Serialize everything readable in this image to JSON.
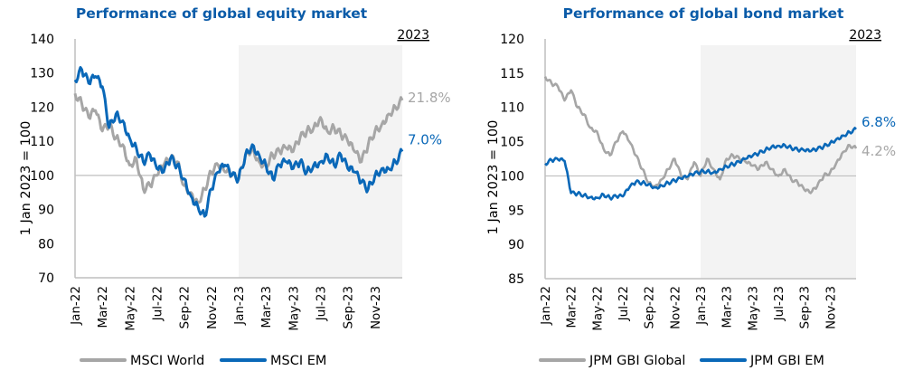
{
  "chart_data": [
    {
      "type": "line",
      "title": "Performance of global equity market",
      "xlabel": "",
      "ylabel": "1 Jan 2023 = 100",
      "ylim": [
        70,
        140
      ],
      "yticks": [
        "140",
        "130",
        "120",
        "110",
        "100",
        "90",
        "80",
        "70"
      ],
      "xticks": [
        "Jan-22",
        "Mar-22",
        "May-22",
        "Jul-22",
        "Sep-22",
        "Nov-22",
        "Jan-23",
        "Mar-23",
        "May-23",
        "Jul-23",
        "Sep-23",
        "Nov-23"
      ],
      "highlight_label": "2023",
      "highlight_range": [
        "Jan-23",
        "Dec-23"
      ],
      "reference_line": 100,
      "legend_position": "bottom",
      "x": [
        0,
        0.5,
        1,
        1.5,
        2,
        2.5,
        3,
        3.5,
        4,
        4.5,
        5,
        5.5,
        6,
        6.5,
        7,
        7.5,
        8,
        8.5,
        9,
        9.5,
        10,
        10.5,
        11,
        11.5,
        12,
        12.5,
        13,
        13.5,
        14,
        14.5,
        15,
        15.5,
        16,
        16.5,
        17,
        17.5,
        18,
        18.5,
        19,
        19.5,
        20,
        20.5,
        21,
        21.5,
        22,
        22.5,
        23,
        23.5,
        24
      ],
      "series": [
        {
          "name": "MSCI World",
          "color": "#a6a6a6",
          "end_label": "21.8%",
          "values": [
            124,
            121,
            117,
            119,
            113,
            115,
            111,
            109,
            103,
            105,
            96,
            97,
            100,
            103,
            105,
            104,
            97,
            95,
            92,
            96,
            101,
            103,
            101,
            100,
            99,
            106,
            108,
            104,
            103,
            106,
            107,
            108,
            107,
            111,
            113,
            114,
            117,
            113,
            114,
            112,
            110,
            107,
            104,
            109,
            113,
            115,
            118,
            120,
            122
          ]
        },
        {
          "name": "MSCI EM",
          "color": "#0a68b8",
          "end_label": "7.0%",
          "values": [
            128,
            131,
            127,
            129,
            126,
            114,
            118,
            116,
            111,
            108,
            104,
            106,
            102,
            101,
            105,
            103,
            99,
            94,
            91,
            88,
            96,
            101,
            103,
            100,
            99,
            106,
            109,
            106,
            103,
            99,
            103,
            104,
            102,
            104,
            101,
            103,
            104,
            106,
            103,
            106,
            102,
            101,
            98,
            96,
            100,
            102,
            102,
            104,
            107
          ]
        }
      ]
    },
    {
      "type": "line",
      "title": "Performance of global bond market",
      "xlabel": "",
      "ylabel": "1 Jan 2023 = 100",
      "ylim": [
        85,
        120
      ],
      "yticks": [
        "120",
        "115",
        "110",
        "105",
        "100",
        "95",
        "90",
        "85"
      ],
      "xticks": [
        "Jan-22",
        "Mar-22",
        "May-22",
        "Jul-22",
        "Sep-22",
        "Nov-22",
        "Jan-23",
        "Mar-23",
        "May-23",
        "Jul-23",
        "Sep-23",
        "Nov-23"
      ],
      "highlight_label": "2023",
      "highlight_range": [
        "Jan-23",
        "Dec-23"
      ],
      "reference_line": 100,
      "legend_position": "bottom",
      "x": [
        0,
        0.5,
        1,
        1.5,
        2,
        2.5,
        3,
        3.5,
        4,
        4.5,
        5,
        5.5,
        6,
        6.5,
        7,
        7.5,
        8,
        8.5,
        9,
        9.5,
        10,
        10.5,
        11,
        11.5,
        12,
        12.5,
        13,
        13.5,
        14,
        14.5,
        15,
        15.5,
        16,
        16.5,
        17,
        17.5,
        18,
        18.5,
        19,
        19.5,
        20,
        20.5,
        21,
        21.5,
        22,
        22.5,
        23,
        23.5,
        24
      ],
      "series": [
        {
          "name": "JPM GBI Global",
          "color": "#a6a6a6",
          "end_label": "4.2%",
          "values": [
            114.5,
            113.5,
            113,
            111,
            112.5,
            110,
            109,
            107,
            106.5,
            104,
            103,
            105,
            106.5,
            105,
            103,
            101,
            99,
            98.5,
            99.5,
            101,
            102.5,
            100,
            99.5,
            102,
            100,
            102.5,
            101,
            99.5,
            102.5,
            103,
            102.5,
            102,
            101.5,
            101,
            102,
            101,
            100,
            101,
            99.5,
            99,
            98,
            97.5,
            98.5,
            100,
            100.5,
            102,
            103.5,
            104.5,
            104
          ]
        },
        {
          "name": "JPM GBI EM",
          "color": "#0a68b8",
          "end_label": "6.8%",
          "values": [
            101.8,
            102.3,
            102.4,
            102.2,
            97.5,
            97.4,
            97.2,
            96.9,
            96.8,
            97.3,
            96.8,
            97,
            97,
            98.3,
            99.1,
            99,
            98.8,
            98.3,
            98.6,
            99,
            99.3,
            99.6,
            99.9,
            100.3,
            100.6,
            100.7,
            100.5,
            101,
            101.4,
            101.7,
            102,
            102.5,
            102.9,
            103.3,
            103.8,
            104.3,
            104.4,
            104.5,
            104.1,
            103.8,
            103.7,
            103.6,
            103.9,
            104.3,
            104.8,
            105.4,
            105.9,
            106.4,
            106.8
          ]
        }
      ]
    }
  ]
}
